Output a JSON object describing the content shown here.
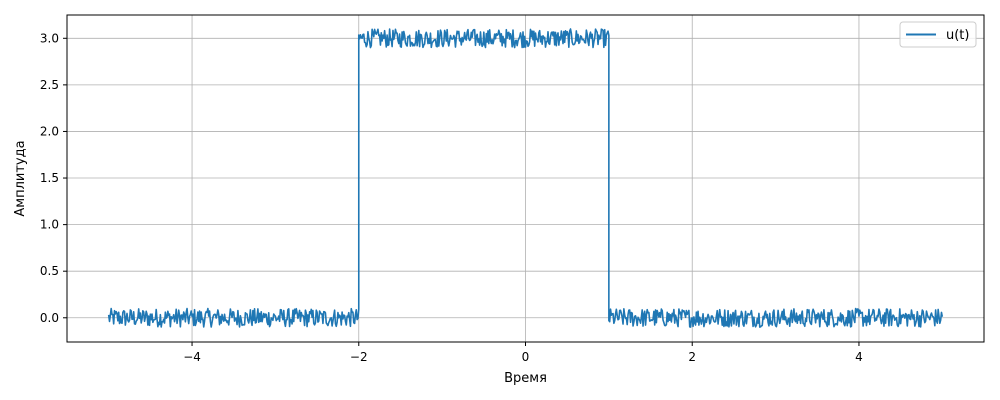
{
  "chart_data": {
    "type": "line",
    "title": "",
    "xlabel": "Время",
    "ylabel": "Амплитуда",
    "xlim": [
      -5.5,
      5.5
    ],
    "ylim": [
      -0.26,
      3.25
    ],
    "grid": true,
    "legend_position": "top-right",
    "x_ticks": [
      -4,
      -2,
      0,
      2,
      4
    ],
    "x_tick_labels": [
      "−4",
      "−2",
      "0",
      "2",
      "4"
    ],
    "y_ticks": [
      0.0,
      0.5,
      1.0,
      1.5,
      2.0,
      2.5,
      3.0
    ],
    "y_tick_labels": [
      "0.0",
      "0.5",
      "1.0",
      "1.5",
      "2.0",
      "2.5",
      "3.0"
    ],
    "series": [
      {
        "name": "u(t)",
        "color": "#1f77b4",
        "segments": [
          {
            "x_start": -5.0,
            "x_end": -2.0,
            "level": 0.0,
            "noise_amplitude": 0.1
          },
          {
            "x_start": -2.0,
            "x_end": 1.0,
            "level": 3.0,
            "noise_amplitude": 0.1
          },
          {
            "x_start": 1.0,
            "x_end": 5.0,
            "level": 0.0,
            "noise_amplitude": 0.1
          }
        ]
      }
    ]
  }
}
